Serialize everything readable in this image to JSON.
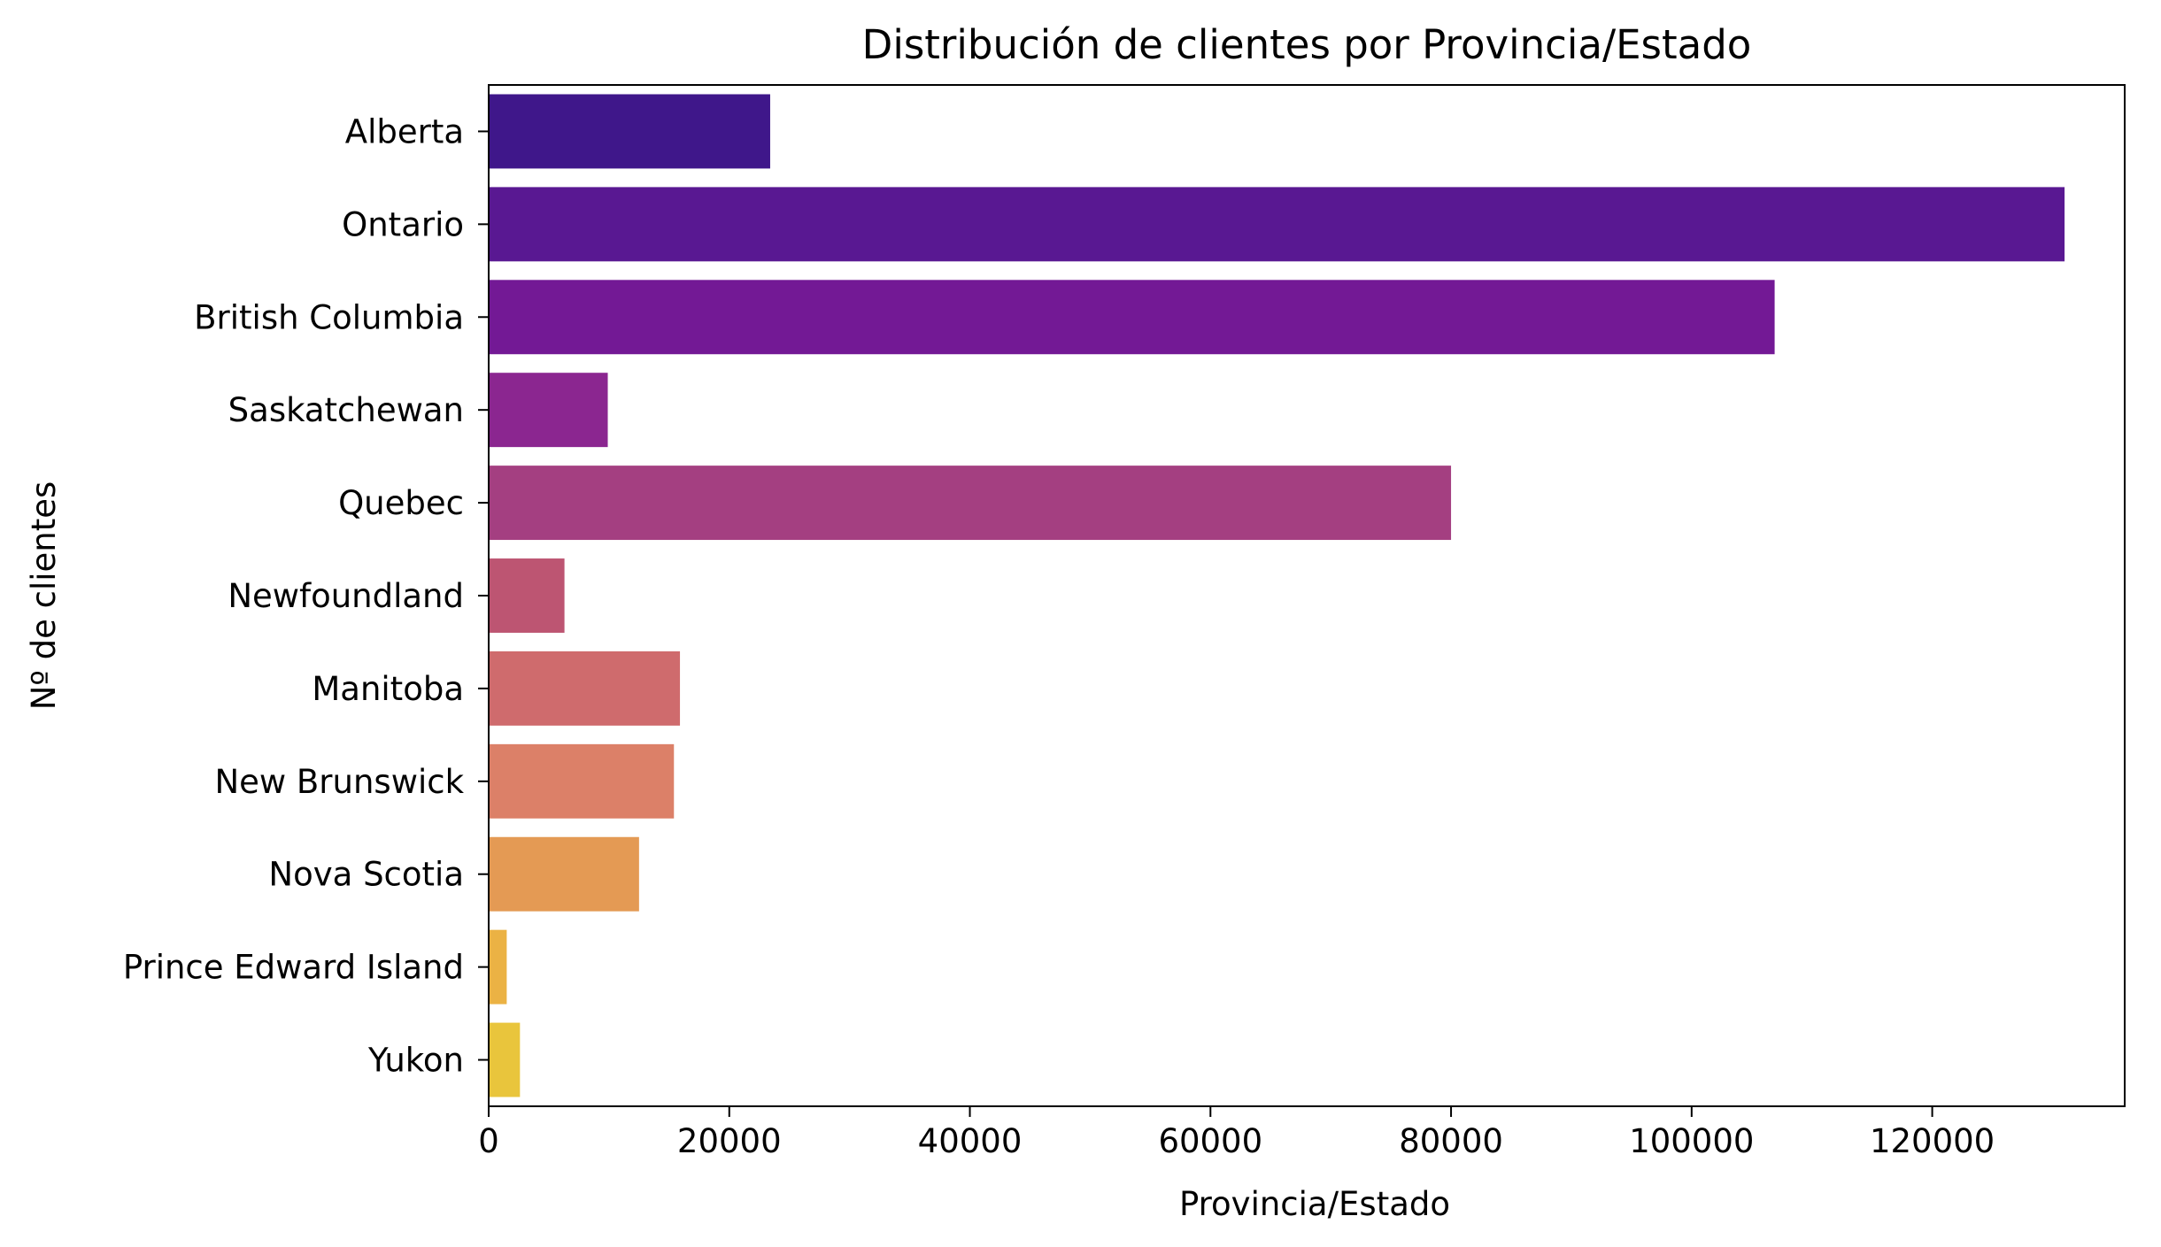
{
  "chart_data": {
    "type": "bar",
    "orientation": "horizontal",
    "title": "Distribución de clientes por Provincia/Estado",
    "xlabel": "Provincia/Estado",
    "ylabel": "Nº de clientes",
    "xlim": [
      0,
      136000
    ],
    "xticks": [
      0,
      20000,
      40000,
      60000,
      80000,
      100000,
      120000
    ],
    "xtick_labels": [
      "0",
      "20000",
      "40000",
      "60000",
      "80000",
      "100000",
      "120000"
    ],
    "grid": false,
    "legend": "none",
    "categories": [
      "Alberta",
      "Ontario",
      "British Columbia",
      "Saskatchewan",
      "Quebec",
      "Newfoundland",
      "Manitoba",
      "New Brunswick",
      "Nova Scotia",
      "Prince Edward Island",
      "Yukon"
    ],
    "values": [
      23400,
      131000,
      106900,
      9900,
      80000,
      6300,
      15900,
      15400,
      12500,
      1500,
      2600
    ],
    "colors": [
      "#3f178a",
      "#591892",
      "#731995",
      "#8b2690",
      "#a43f81",
      "#bd5572",
      "#cf6b6d",
      "#dc8068",
      "#e49a54",
      "#ebb244",
      "#e9c53c"
    ]
  }
}
